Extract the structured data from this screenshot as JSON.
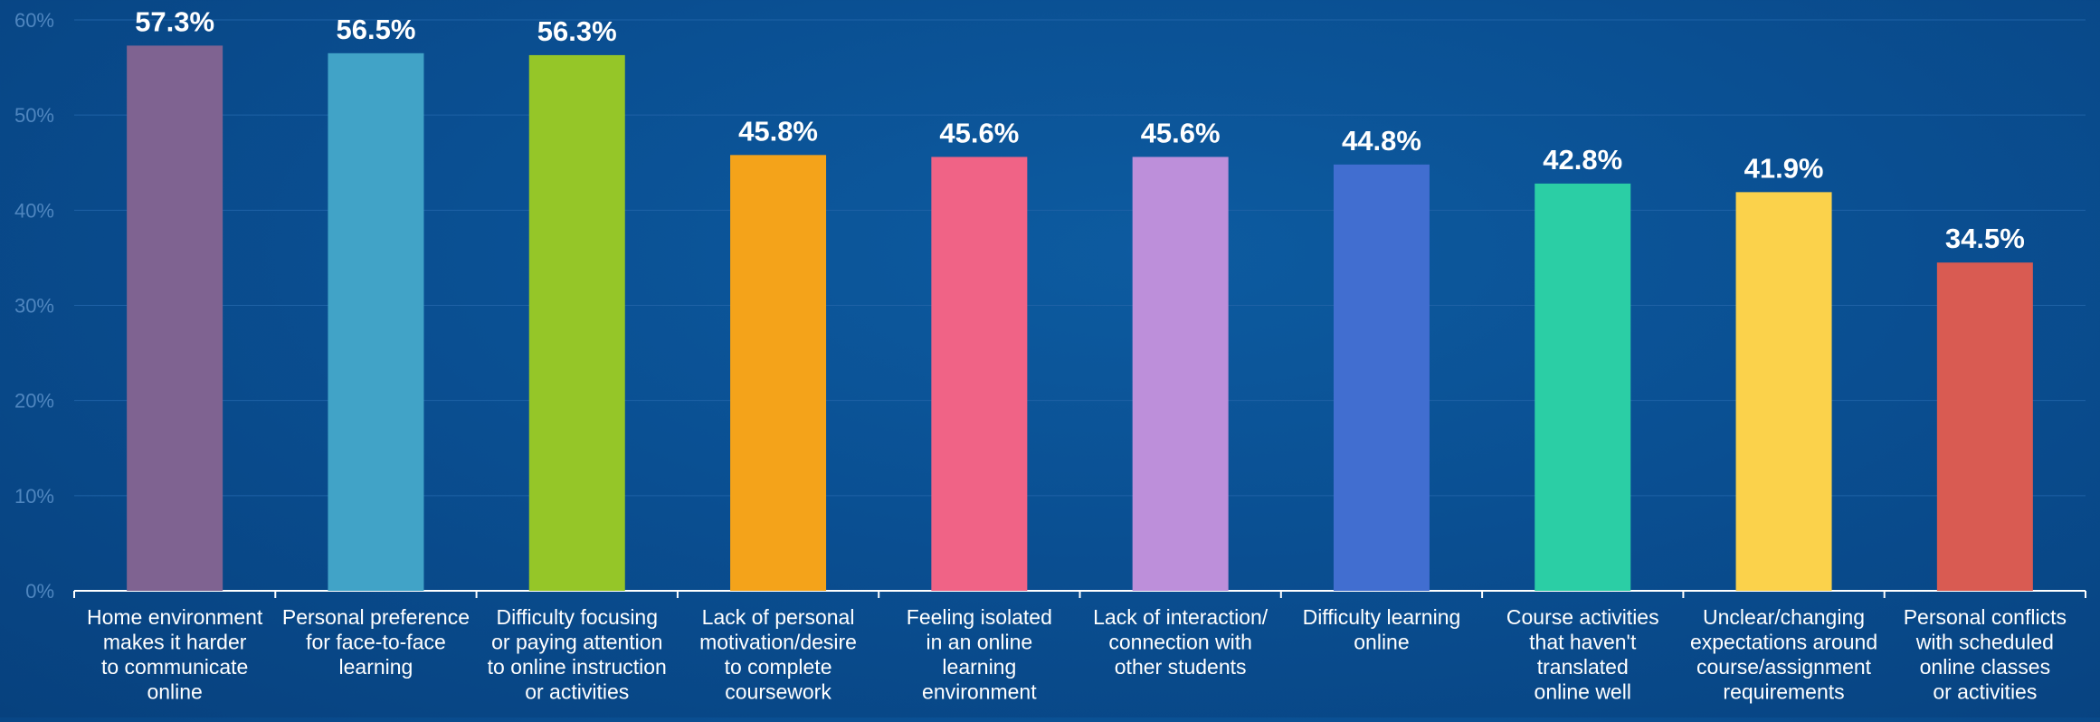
{
  "chart_data": {
    "type": "bar",
    "title": "",
    "xlabel": "",
    "ylabel": "",
    "ylim": [
      0,
      60
    ],
    "yticks": [
      0,
      10,
      20,
      30,
      40,
      50,
      60
    ],
    "ytick_labels": [
      "0%",
      "10%",
      "20%",
      "30%",
      "40%",
      "50%",
      "60%"
    ],
    "grid": true,
    "legend": "none",
    "categories": [
      [
        "Home environment",
        "makes it harder",
        "to communicate",
        "online"
      ],
      [
        "Personal preference",
        "for face-to-face",
        "learning"
      ],
      [
        "Difficulty focusing",
        "or paying attention",
        "to online instruction",
        "or activities"
      ],
      [
        "Lack of personal",
        "motivation/desire",
        "to complete",
        "coursework"
      ],
      [
        "Feeling isolated",
        "in an online",
        "learning",
        "environment"
      ],
      [
        "Lack of interaction/",
        "connection with",
        "other students"
      ],
      [
        "Difficulty learning",
        "online"
      ],
      [
        "Course activities",
        "that haven't",
        "translated",
        "online well"
      ],
      [
        "Unclear/changing",
        "expectations around",
        "course/assignment",
        "requirements"
      ],
      [
        "Personal conflicts",
        "with scheduled",
        "online classes",
        "or activities"
      ]
    ],
    "values": [
      57.3,
      56.5,
      56.3,
      45.8,
      45.6,
      45.6,
      44.8,
      42.8,
      41.9,
      34.5
    ],
    "value_labels": [
      "57.3%",
      "56.5%",
      "56.3%",
      "45.8%",
      "45.6%",
      "45.6%",
      "44.8%",
      "42.8%",
      "41.9%",
      "34.5%"
    ],
    "colors": [
      "#7f6391",
      "#41a3c7",
      "#95c628",
      "#f4a31a",
      "#f06386",
      "#bd8fda",
      "#416ed0",
      "#2bcea5",
      "#fbd24b",
      "#d95b52"
    ]
  }
}
